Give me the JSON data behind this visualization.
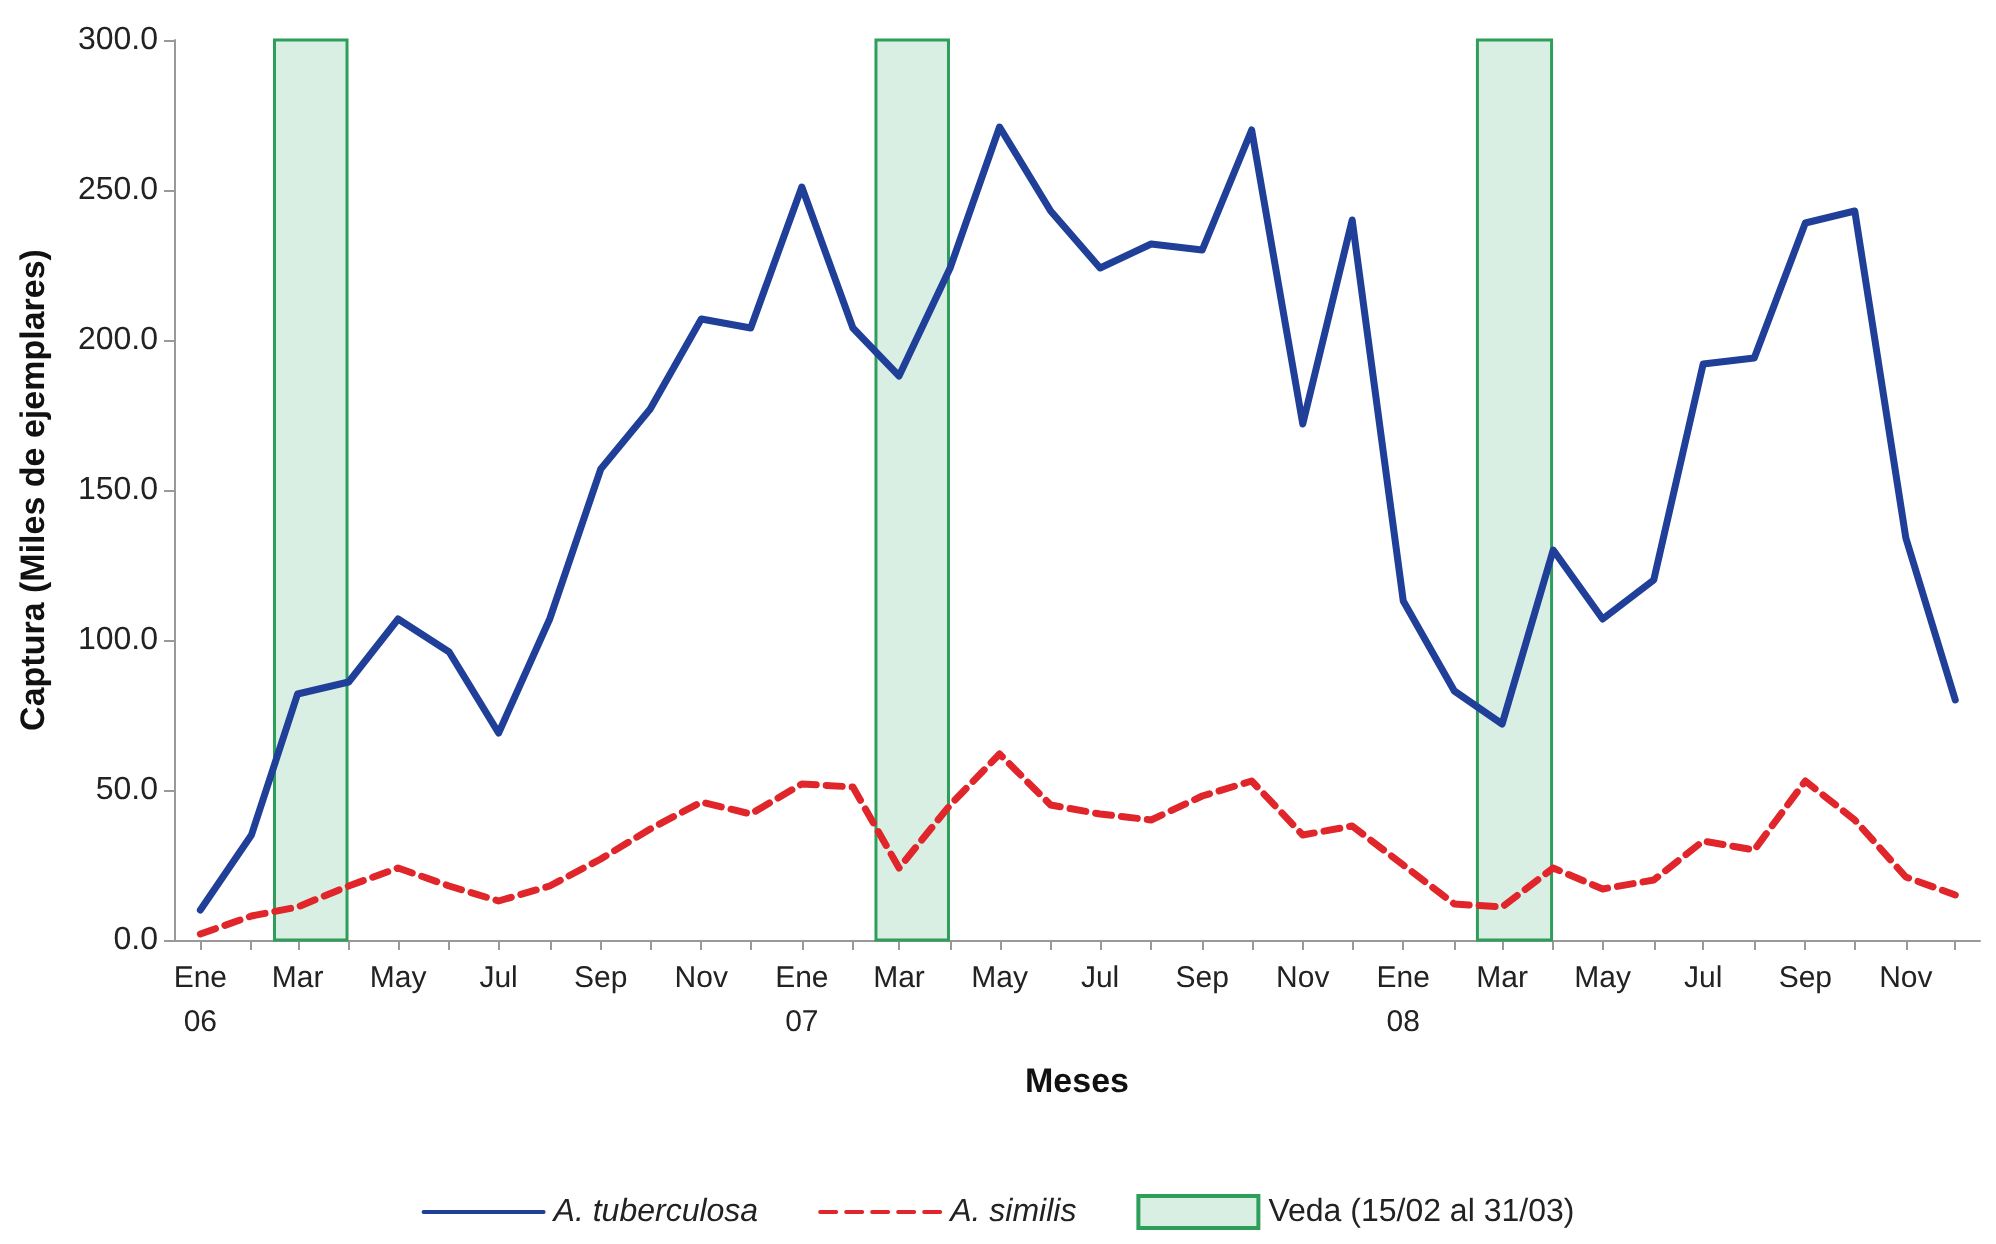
{
  "chart_data": {
    "type": "line",
    "xlabel": "Meses",
    "ylabel": "Captura (Miles de ejemplares)",
    "x": [
      "2006-01",
      "2006-02",
      "2006-03",
      "2006-04",
      "2006-05",
      "2006-06",
      "2006-07",
      "2006-08",
      "2006-09",
      "2006-10",
      "2006-11",
      "2006-12",
      "2007-01",
      "2007-02",
      "2007-03",
      "2007-04",
      "2007-05",
      "2007-06",
      "2007-07",
      "2007-08",
      "2007-09",
      "2007-10",
      "2007-11",
      "2007-12",
      "2008-01",
      "2008-02",
      "2008-03",
      "2008-04",
      "2008-05",
      "2008-06",
      "2008-07",
      "2008-08",
      "2008-09",
      "2008-10",
      "2008-11",
      "2008-12"
    ],
    "series": [
      {
        "name": "A. tuberculosa",
        "color": "#1f3f99",
        "line_style": "solid",
        "values": [
          10,
          35,
          82,
          86,
          107,
          96,
          69,
          107,
          157,
          177,
          207,
          204,
          251,
          204,
          188,
          224,
          271,
          243,
          224,
          232,
          230,
          270,
          172,
          240,
          113,
          83,
          72,
          130,
          107,
          120,
          192,
          194,
          239,
          243,
          134,
          80
        ]
      },
      {
        "name": "A. similis",
        "color": "#e0252b",
        "line_style": "dashed",
        "values": [
          2,
          8,
          11,
          18,
          24,
          18,
          13,
          18,
          27,
          37,
          46,
          42,
          52,
          51,
          24,
          45,
          62,
          45,
          42,
          40,
          48,
          53,
          35,
          38,
          25,
          12,
          11,
          24,
          17,
          20,
          33,
          30,
          53,
          40,
          21,
          15
        ]
      }
    ],
    "bands": [
      {
        "axis": "x",
        "from": "2006-02-15",
        "to": "2006-03-31",
        "label": "Veda (15/02 al 31/03)",
        "color": "#d9efe4"
      },
      {
        "axis": "x",
        "from": "2007-02-15",
        "to": "2007-03-31",
        "color": "#d9efe4"
      },
      {
        "axis": "x",
        "from": "2008-02-15",
        "to": "2008-03-31",
        "color": "#d9efe4"
      }
    ],
    "xlim": [
      "2005-12-16",
      "2008-12-16"
    ],
    "xticks": [
      {
        "value": "2006-01",
        "label": "Ene\n06"
      },
      {
        "value": "2006-02",
        "label": null
      },
      {
        "value": "2006-03",
        "label": "Mar"
      },
      {
        "value": "2006-04",
        "label": null
      },
      {
        "value": "2006-05",
        "label": "May"
      },
      {
        "value": "2006-06",
        "label": null
      },
      {
        "value": "2006-07",
        "label": "Jul"
      },
      {
        "value": "2006-08",
        "label": null
      },
      {
        "value": "2006-09",
        "label": "Sep"
      },
      {
        "value": "2006-10",
        "label": null
      },
      {
        "value": "2006-11",
        "label": "Nov"
      },
      {
        "value": "2006-12",
        "label": null
      },
      {
        "value": "2007-01",
        "label": "Ene\n07"
      },
      {
        "value": "2007-02",
        "label": null
      },
      {
        "value": "2007-03",
        "label": "Mar"
      },
      {
        "value": "2007-04",
        "label": null
      },
      {
        "value": "2007-05",
        "label": "May"
      },
      {
        "value": "2007-06",
        "label": null
      },
      {
        "value": "2007-07",
        "label": "Jul"
      },
      {
        "value": "2007-08",
        "label": null
      },
      {
        "value": "2007-09",
        "label": "Sep"
      },
      {
        "value": "2007-10",
        "label": null
      },
      {
        "value": "2007-11",
        "label": "Nov"
      },
      {
        "value": "2007-12",
        "label": null
      },
      {
        "value": "2008-01",
        "label": "Ene\n08"
      },
      {
        "value": "2008-02",
        "label": null
      },
      {
        "value": "2008-03",
        "label": "Mar"
      },
      {
        "value": "2008-04",
        "label": null
      },
      {
        "value": "2008-05",
        "label": "May"
      },
      {
        "value": "2008-06",
        "label": null
      },
      {
        "value": "2008-07",
        "label": "Jul"
      },
      {
        "value": "2008-08",
        "label": null
      },
      {
        "value": "2008-09",
        "label": "Sep"
      },
      {
        "value": "2008-10",
        "label": null
      },
      {
        "value": "2008-11",
        "label": "Nov"
      },
      {
        "value": "2008-12",
        "label": null
      }
    ],
    "ylim": [
      0,
      300
    ],
    "yticks": [
      {
        "value": 0,
        "label": "0.0"
      },
      {
        "value": 50,
        "label": "50.0"
      },
      {
        "value": 100,
        "label": "100.0"
      },
      {
        "value": 150,
        "label": "150.0"
      },
      {
        "value": 200,
        "label": "200.0"
      },
      {
        "value": 250,
        "label": "250.0"
      },
      {
        "value": 300,
        "label": "300.0"
      }
    ],
    "grid": false,
    "marker": "none",
    "legend": "bottom"
  }
}
